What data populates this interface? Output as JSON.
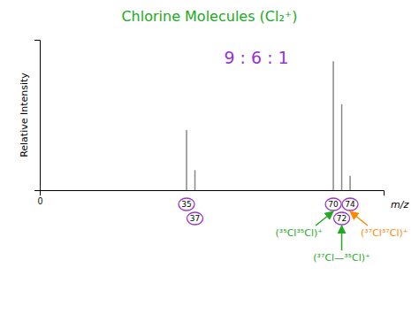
{
  "chart_data": {
    "type": "stem",
    "title": "Chlorine Molecules (Cl₂⁺)",
    "x": [
      35,
      37,
      70,
      72,
      74
    ],
    "values": [
      0.42,
      0.14,
      0.9,
      0.6,
      0.1
    ],
    "color": "#888888",
    "xlabel": "m/z",
    "ylabel": "Relative Intensity",
    "xlim": [
      0,
      82
    ],
    "ylim": [
      0,
      1.05
    ],
    "xticks": [
      0
    ],
    "yticks": [],
    "annotations": [
      {
        "text": "9 : 6 : 1",
        "color": "#9933cc"
      },
      {
        "text": "(³⁵Cl³⁵Cl)⁺",
        "x": 70,
        "color": "#22aa22"
      },
      {
        "text": "(³⁷Cl—³⁵Cl)⁺",
        "x": 72,
        "color": "#22aa22"
      },
      {
        "text": "(³⁷Cl³⁷Cl)⁺",
        "x": 74,
        "color": "#ff8800"
      }
    ]
  }
}
